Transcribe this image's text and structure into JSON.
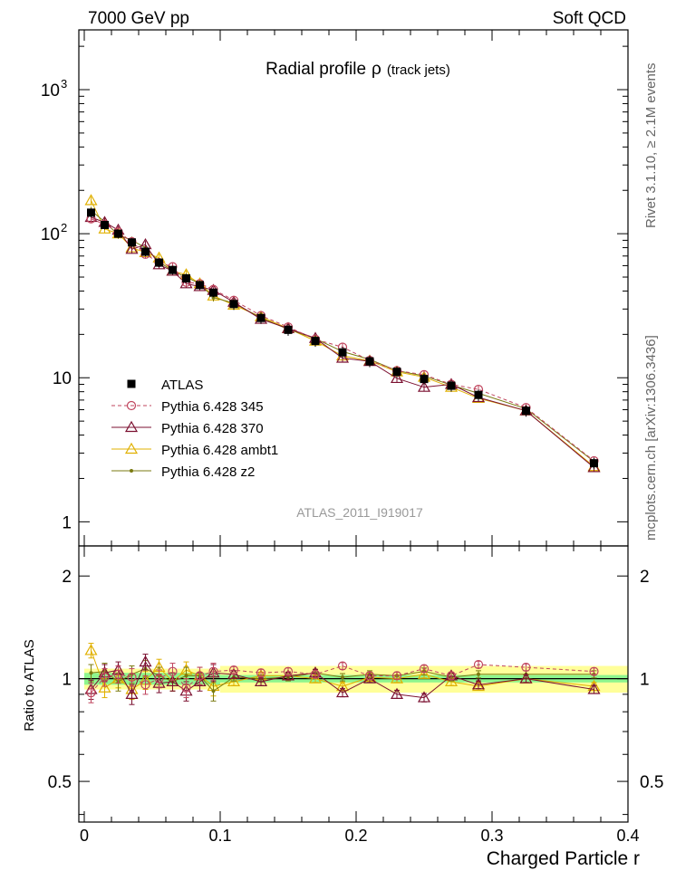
{
  "header": {
    "left": "7000 GeV pp",
    "right": "Soft QCD"
  },
  "side_labels": {
    "top": "Rivet 3.1.10, ≥ 2.1M events",
    "bottom": "mcplots.cern.ch [arXiv:1306.3436]"
  },
  "chart_data": {
    "type": "line",
    "title": "Radial profile",
    "title_symbol": "ρ",
    "title_suffix": "(track jets)",
    "analysis_label": "ATLAS_2011_I919017",
    "xlabel": "Charged Particle r",
    "ylabel_ratio": "Ratio to ATLAS",
    "xlim": [
      -0.004,
      0.4
    ],
    "ylim_main": [
      0.68,
      2600
    ],
    "ylim_ratio": [
      0.38,
      2.45
    ],
    "y_scale_main": "log",
    "y_scale_ratio": "log",
    "legend_position": "bottom-left",
    "x_ticks": [
      "0",
      "0.1",
      "0.2",
      "0.3",
      "0.4"
    ],
    "y_ticks_main": [
      "1",
      "10",
      "10",
      "10"
    ],
    "y_ticks_main_exponents": [
      "",
      "",
      "2",
      "3"
    ],
    "y_ticks_ratio": [
      "0.5",
      "1",
      "2"
    ],
    "x": [
      0.005,
      0.015,
      0.025,
      0.035,
      0.045,
      0.055,
      0.065,
      0.075,
      0.085,
      0.095,
      0.11,
      0.13,
      0.15,
      0.17,
      0.19,
      0.21,
      0.23,
      0.25,
      0.27,
      0.29,
      0.325,
      0.375
    ],
    "band_edges": [
      0,
      0.01,
      0.02,
      0.03,
      0.04,
      0.05,
      0.06,
      0.07,
      0.08,
      0.09,
      0.1,
      0.12,
      0.14,
      0.16,
      0.18,
      0.2,
      0.22,
      0.24,
      0.26,
      0.28,
      0.3,
      0.35,
      0.4
    ],
    "series": [
      {
        "name": "ATLAS",
        "color": "#000000",
        "marker": "square",
        "values": [
          140,
          115,
          100,
          87,
          75,
          63,
          56,
          49,
          44,
          39,
          32.5,
          26,
          21.5,
          18,
          15,
          13,
          11,
          9.8,
          8.8,
          7.6,
          5.9,
          2.55
        ],
        "stat_rel": [
          0.04,
          0.04,
          0.04,
          0.04,
          0.04,
          0.04,
          0.04,
          0.04,
          0.04,
          0.04,
          0.025,
          0.025,
          0.025,
          0.025,
          0.025,
          0.025,
          0.025,
          0.025,
          0.025,
          0.025,
          0.025,
          0.025
        ],
        "total_rel": [
          0.07,
          0.07,
          0.07,
          0.07,
          0.07,
          0.07,
          0.07,
          0.07,
          0.07,
          0.07,
          0.09,
          0.09,
          0.09,
          0.09,
          0.09,
          0.09,
          0.09,
          0.09,
          0.09,
          0.09,
          0.09,
          0.09
        ]
      },
      {
        "name": "Pythia 6.428 345",
        "color": "#c0455e",
        "marker": "circle",
        "dashed": true,
        "values": [
          127,
          116,
          103,
          88,
          72,
          63,
          59,
          46,
          45,
          41,
          34.5,
          27,
          22.5,
          18.5,
          16.3,
          13.2,
          11.2,
          10.5,
          9.0,
          8.3,
          6.2,
          2.65
        ],
        "ratio": [
          0.91,
          1.01,
          1.03,
          1.01,
          0.96,
          1.0,
          1.05,
          0.94,
          1.02,
          1.05,
          1.06,
          1.04,
          1.05,
          1.03,
          1.09,
          1.02,
          1.02,
          1.07,
          1.02,
          1.1,
          1.08,
          1.05
        ]
      },
      {
        "name": "Pythia 6.428 370",
        "color": "#7b1030",
        "marker": "triangle",
        "dashed": false,
        "values": [
          130,
          120,
          106,
          78,
          84,
          61,
          55,
          45,
          43,
          40.5,
          33.5,
          25.5,
          22,
          18.8,
          13.7,
          13,
          9.9,
          8.6,
          9.0,
          7.3,
          5.9,
          2.38
        ],
        "ratio": [
          0.93,
          1.04,
          1.06,
          0.9,
          1.12,
          0.97,
          0.98,
          0.92,
          0.98,
          1.04,
          1.03,
          0.98,
          1.02,
          1.04,
          0.91,
          1.0,
          0.9,
          0.88,
          1.02,
          0.96,
          1.0,
          0.93
        ]
      },
      {
        "name": "Pythia 6.428 ambt1",
        "color": "#e0b000",
        "marker": "triangle",
        "dashed": false,
        "values": [
          170,
          108,
          100,
          80,
          74,
          68,
          55,
          52,
          45,
          37,
          32,
          26.5,
          22,
          18,
          14.2,
          13.1,
          11,
          10.1,
          8.6,
          7.2,
          5.9,
          2.42
        ],
        "ratio": [
          1.21,
          0.94,
          1.0,
          0.93,
          0.99,
          1.08,
          0.98,
          1.06,
          1.02,
          0.95,
          0.98,
          1.02,
          1.02,
          1.0,
          0.95,
          1.01,
          1.0,
          1.03,
          0.98,
          0.95,
          1.0,
          0.95
        ]
      },
      {
        "name": "Pythia 6.428 z2",
        "color": "#7a7a10",
        "marker": "dot",
        "dashed": false,
        "values": [
          145,
          121,
          98,
          90,
          80,
          64,
          55,
          50,
          45,
          36,
          33,
          26,
          21.7,
          18.7,
          15.2,
          13.4,
          11.2,
          10.3,
          8.9,
          7.8,
          6.1,
          2.62
        ],
        "ratio": [
          1.04,
          1.05,
          0.98,
          1.03,
          1.07,
          1.02,
          0.98,
          1.02,
          1.02,
          0.92,
          1.01,
          1.0,
          1.01,
          1.04,
          1.01,
          1.03,
          1.02,
          1.05,
          1.01,
          1.03,
          1.03,
          1.03
        ]
      }
    ]
  },
  "colors": {
    "stat_band": "#8ef58e",
    "total_band": "#ffff9a"
  }
}
